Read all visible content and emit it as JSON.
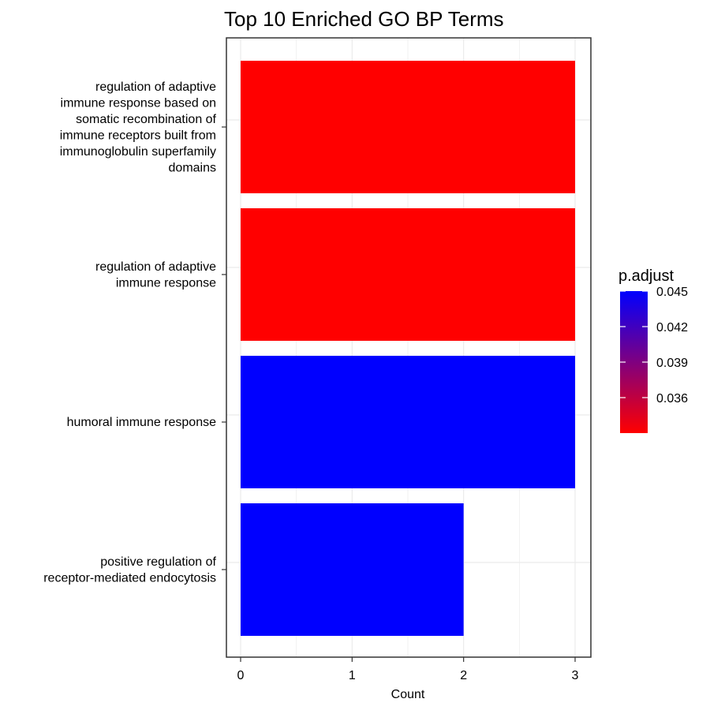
{
  "chart_data": {
    "type": "bar",
    "orientation": "horizontal",
    "title": "Top 10 Enriched GO BP Terms",
    "xlabel": "Count",
    "ylabel": "",
    "xlim": [
      0,
      3
    ],
    "x_ticks": [
      0,
      1,
      2,
      3
    ],
    "grid": true,
    "categories": [
      [
        "regulation of adaptive",
        "immune response based on",
        "somatic recombination of",
        "immune receptors built from",
        "immunoglobulin superfamily",
        "domains"
      ],
      [
        "regulation of adaptive",
        "immune response"
      ],
      [
        "humoral immune response"
      ],
      [
        "positive regulation of",
        "receptor-mediated endocytosis"
      ]
    ],
    "values": [
      3,
      3,
      3,
      2
    ],
    "p_adjust": [
      0.033,
      0.033,
      0.045,
      0.045
    ],
    "bar_colors": [
      "#ff0000",
      "#ff0000",
      "#0000ff",
      "#0000ff"
    ],
    "legend": {
      "title": "p.adjust",
      "placement": "right",
      "ticks": [
        "0.045",
        "0.042",
        "0.039",
        "0.036"
      ],
      "tick_values": [
        0.045,
        0.042,
        0.039,
        0.036
      ],
      "range": [
        0.033,
        0.045
      ],
      "color_low": "#ff0000",
      "color_high": "#0000ff"
    }
  }
}
